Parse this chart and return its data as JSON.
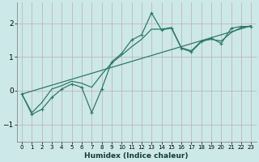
{
  "xlabel": "Humidex (Indice chaleur)",
  "ylabel": "",
  "bg_color": "#cce8e8",
  "grid_color": "#b8c8c0",
  "line_color": "#2d7a6a",
  "xlim": [
    -0.5,
    23.5
  ],
  "ylim": [
    -1.5,
    2.6
  ],
  "yticks": [
    -1,
    0,
    1,
    2
  ],
  "xticks": [
    0,
    1,
    2,
    3,
    4,
    5,
    6,
    7,
    8,
    9,
    10,
    11,
    12,
    13,
    14,
    15,
    16,
    17,
    18,
    19,
    20,
    21,
    22,
    23
  ],
  "line1_x": [
    0,
    1,
    2,
    3,
    4,
    5,
    6,
    7,
    8,
    9,
    10,
    11,
    12,
    13,
    14,
    15,
    16,
    17,
    18,
    19,
    20,
    21,
    22,
    23
  ],
  "line1_y": [
    -0.1,
    -0.7,
    -0.55,
    -0.2,
    0.05,
    0.2,
    0.1,
    -0.65,
    0.05,
    0.85,
    1.1,
    1.5,
    1.65,
    2.3,
    1.8,
    1.85,
    1.25,
    1.15,
    1.45,
    1.55,
    1.4,
    1.85,
    1.9,
    1.9
  ],
  "line2_x": [
    0,
    1,
    2,
    3,
    4,
    5,
    6,
    7,
    8,
    9,
    10,
    11,
    12,
    13,
    14,
    15,
    16,
    17,
    18,
    19,
    20,
    21,
    22,
    23
  ],
  "line2_y": [
    -0.1,
    -0.65,
    -0.35,
    0.05,
    0.15,
    0.28,
    0.22,
    0.1,
    0.48,
    0.82,
    1.05,
    1.3,
    1.52,
    1.82,
    1.82,
    1.87,
    1.27,
    1.18,
    1.47,
    1.52,
    1.47,
    1.72,
    1.87,
    1.92
  ],
  "line3_x": [
    0,
    23
  ],
  "line3_y": [
    -0.1,
    1.92
  ]
}
